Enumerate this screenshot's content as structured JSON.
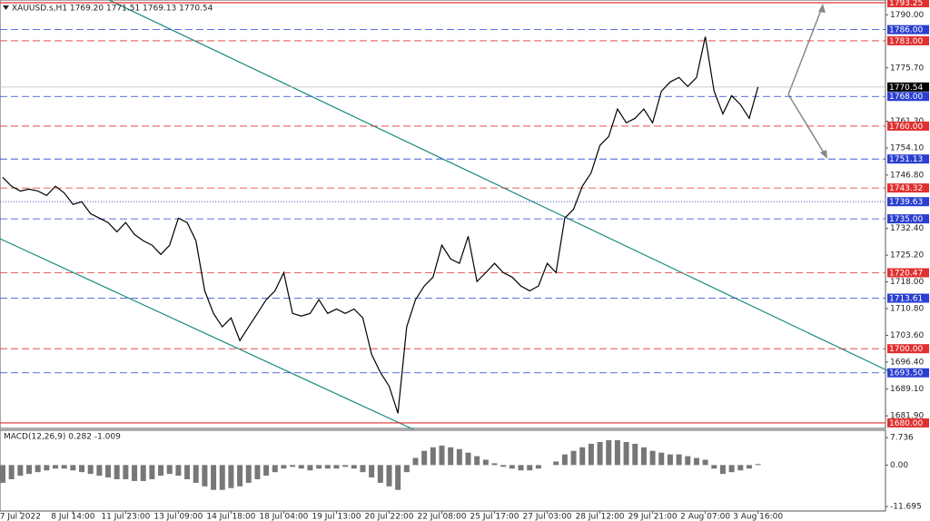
{
  "chart_data": [
    {
      "type": "line",
      "title": "XAUUSD.s,H1  1769.20 1771.51 1769.13 1770.54",
      "color": "#000000",
      "categories": [
        null,
        null,
        "7 Jul 2022",
        null,
        null,
        null,
        null,
        null,
        "8 Jul 14:00",
        null,
        null,
        null,
        null,
        null,
        "11 Jul 23:00",
        null,
        null,
        null,
        null,
        null,
        "13 Jul 09:00",
        null,
        null,
        null,
        null,
        null,
        "14 Jul 18:00",
        null,
        null,
        null,
        null,
        null,
        "18 Jul 04:00",
        null,
        null,
        null,
        null,
        null,
        "19 Jul 13:00",
        null,
        null,
        null,
        null,
        null,
        "20 Jul 22:00",
        null,
        null,
        null,
        null,
        null,
        "22 Jul 08:00",
        null,
        null,
        null,
        null,
        null,
        "25 Jul 17:00",
        null,
        null,
        null,
        null,
        null,
        "27 Jul 03:00",
        null,
        null,
        null,
        null,
        null,
        "28 Jul 12:00",
        null,
        null,
        null,
        null,
        null,
        "29 Jul 21:00",
        null,
        null,
        null,
        null,
        null,
        "2 Aug 07:00",
        null,
        null,
        null,
        null,
        null,
        "3 Aug 16:00"
      ],
      "values": [
        1746.2,
        1743.8,
        1742.5,
        1743.0,
        1742.5,
        1741.3,
        1743.8,
        1742.0,
        1738.9,
        1739.6,
        1736.4,
        1735.2,
        1734.0,
        1731.5,
        1734.0,
        1730.8,
        1729.1,
        1727.9,
        1725.4,
        1727.9,
        1735.2,
        1734.0,
        1729.1,
        1715.6,
        1709.5,
        1705.9,
        1708.3,
        1702.2,
        1705.9,
        1709.5,
        1713.2,
        1715.6,
        1720.5,
        1709.5,
        1708.8,
        1709.5,
        1713.2,
        1709.5,
        1710.7,
        1709.5,
        1710.7,
        1708.3,
        1698.5,
        1693.6,
        1689.9,
        1682.6,
        1705.9,
        1713.2,
        1716.9,
        1719.3,
        1727.9,
        1724.2,
        1723.0,
        1730.3,
        1718.1,
        1720.5,
        1723.0,
        1720.5,
        1719.3,
        1716.9,
        1715.6,
        1716.9,
        1723.0,
        1720.5,
        1735.2,
        1737.6,
        1743.8,
        1747.4,
        1754.8,
        1757.2,
        1764.6,
        1760.9,
        1762.1,
        1764.6,
        1760.9,
        1769.4,
        1771.9,
        1773.1,
        1770.7,
        1773.1,
        1784.1,
        1769.4,
        1763.3,
        1768.2,
        1765.8,
        1762.1,
        1770.54
      ],
      "ylim": [
        1679,
        1793.5
      ],
      "yticks": [
        {
          "value": 1790,
          "label": "1790.00"
        },
        {
          "value": 1775.7,
          "label": "1775.70"
        },
        {
          "value": 1761.3,
          "label": "1761.30"
        },
        {
          "value": 1754.1,
          "label": "1754.10"
        },
        {
          "value": 1746.8,
          "label": "1746.80"
        },
        {
          "value": 1732.4,
          "label": "1732.40"
        },
        {
          "value": 1725.2,
          "label": "1725.20"
        },
        {
          "value": 1718,
          "label": "1718.00"
        },
        {
          "value": 1710.8,
          "label": "1710.80"
        },
        {
          "value": 1703.6,
          "label": "1703.60"
        },
        {
          "value": 1696.4,
          "label": "1696.40"
        },
        {
          "value": 1689.1,
          "label": "1689.10"
        },
        {
          "value": 1681.9,
          "label": "1681.90"
        }
      ],
      "levels": [
        {
          "value": 1793.25,
          "label": "1793.25",
          "color": "#e03030",
          "style": "solid"
        },
        {
          "value": 1786,
          "label": "1786.00",
          "color": "#2b3fd0",
          "style": "dashed"
        },
        {
          "value": 1783,
          "label": "1783.00",
          "color": "#e03030",
          "style": "dashed"
        },
        {
          "value": 1770.54,
          "label": "1770.54",
          "color": "#000000",
          "style": "thin"
        },
        {
          "value": 1768,
          "label": "1768.00",
          "color": "#2b3fd0",
          "style": "dashed"
        },
        {
          "value": 1760,
          "label": "1760.00",
          "color": "#e03030",
          "style": "dashed"
        },
        {
          "value": 1751.13,
          "label": "1751.13",
          "color": "#2b3fd0",
          "style": "dashed"
        },
        {
          "value": 1743.32,
          "label": "1743.32",
          "color": "#e03030",
          "style": "dashed"
        },
        {
          "value": 1739.63,
          "label": "1739.63",
          "color": "#2b3fd0",
          "style": "dotted"
        },
        {
          "value": 1735,
          "label": "1735.00",
          "color": "#2b3fd0",
          "style": "dashed"
        },
        {
          "value": 1720.47,
          "label": "1720.47",
          "color": "#e03030",
          "style": "dashed"
        },
        {
          "value": 1713.61,
          "label": "1713.61",
          "color": "#2b3fd0",
          "style": "dashed"
        },
        {
          "value": 1700,
          "label": "1700.00",
          "color": "#e03030",
          "style": "dashed"
        },
        {
          "value": 1693.5,
          "label": "1693.50",
          "color": "#2b3fd0",
          "style": "dashed"
        },
        {
          "value": 1680,
          "label": "1680.00",
          "color": "#e03030",
          "style": "solid"
        }
      ]
    },
    {
      "type": "bar",
      "title": "MACD(12,26,9) 0.282 -1.009",
      "color": "#777777",
      "values": [
        -5,
        -4,
        -3,
        -2.5,
        -2,
        -1.5,
        -1,
        -1,
        -1.5,
        -2,
        -2.5,
        -3,
        -3.5,
        -4,
        -4,
        -4.5,
        -4.5,
        -4,
        -3,
        -2.5,
        -3,
        -4,
        -5,
        -6,
        -7,
        -7,
        -6.5,
        -6,
        -5,
        -4,
        -3,
        -2,
        -1,
        -0.5,
        -1,
        -1.5,
        -1,
        -1,
        -1,
        -0.5,
        -1,
        -2,
        -3.5,
        -5,
        -6,
        -7,
        -2,
        2,
        4,
        5,
        5.5,
        5,
        4.5,
        3.5,
        2.5,
        1.5,
        0.5,
        -0.5,
        -1,
        -1.5,
        -1.5,
        -1,
        0,
        1,
        3,
        4,
        5,
        6,
        6.5,
        7,
        7,
        6.5,
        6,
        5,
        4,
        3.5,
        3,
        3,
        2.5,
        2,
        1.5,
        -1,
        -2.5,
        -2,
        -1.5,
        -1,
        0.282
      ],
      "ylim": [
        -12.7,
        9.3
      ],
      "yticks": [
        {
          "value": 7.736,
          "label": "7.736"
        },
        {
          "value": 0,
          "label": "0.00"
        },
        {
          "value": -11.695,
          "label": "-11.695"
        }
      ]
    }
  ]
}
